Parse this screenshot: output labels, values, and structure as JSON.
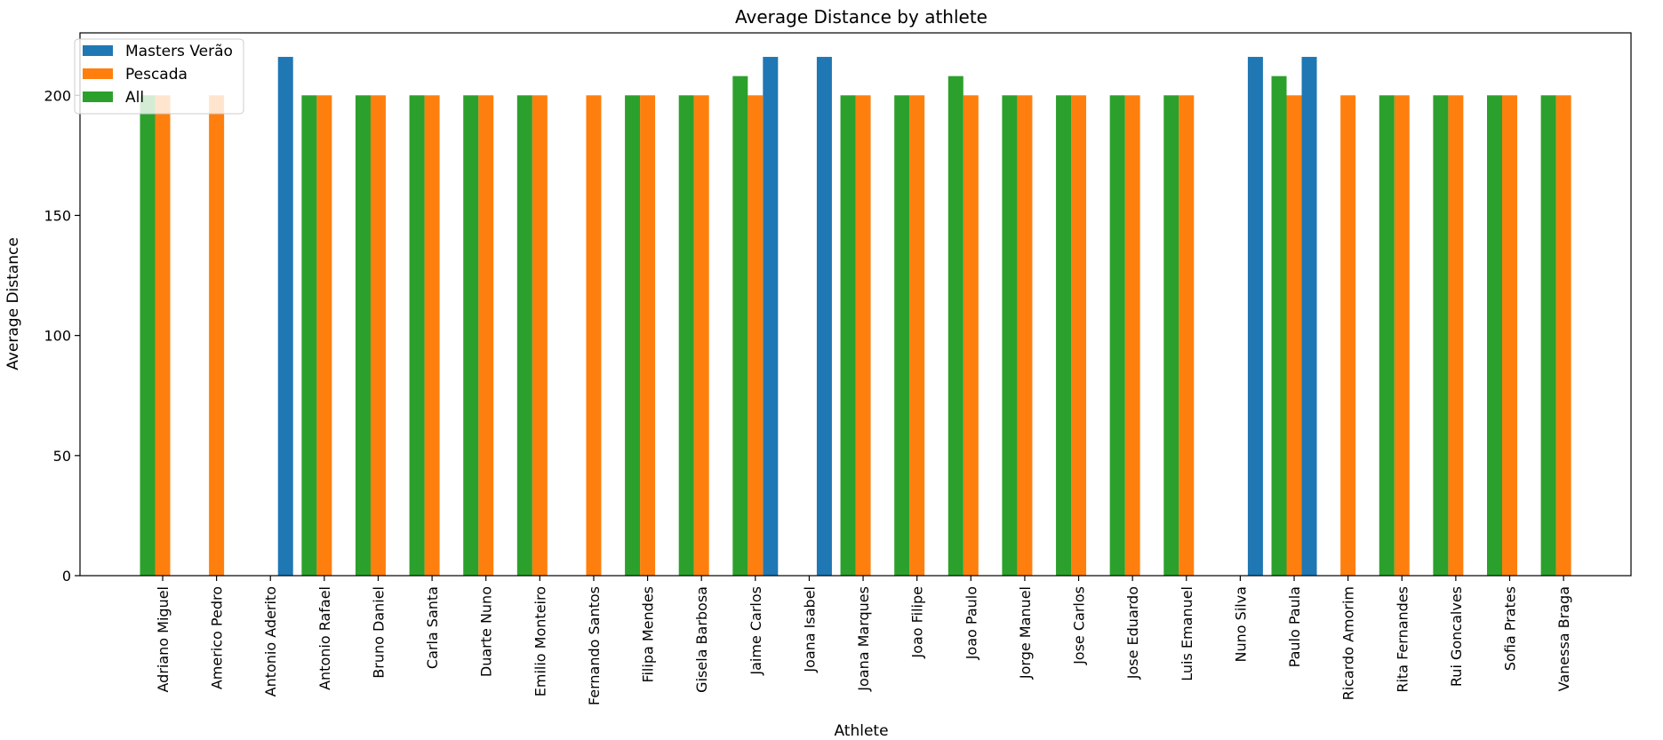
{
  "chart_data": {
    "type": "bar",
    "title": "Average Distance by athlete",
    "xlabel": "Athlete",
    "ylabel": "Average Distance",
    "ylim": [
      0,
      226
    ],
    "yticks": [
      0,
      50,
      100,
      150,
      200
    ],
    "grid": false,
    "legend_position": "top-left",
    "categories": [
      "Adriano Miguel",
      "Americo Pedro",
      "Antonio Aderito",
      "Antonio Rafael",
      "Bruno Daniel",
      "Carla Santa",
      "Duarte Nuno",
      "Emilio Monteiro",
      "Fernando Santos",
      "Filipa Mendes",
      "Gisela Barbosa",
      "Jaime Carlos",
      "Joana Isabel",
      "Joana Marques",
      "Joao Filipe",
      "Joao Paulo",
      "Jorge Manuel",
      "Jose Carlos",
      "Jose Eduardo",
      "Luis Emanuel",
      "Nuno Silva",
      "Paulo Paula",
      "Ricardo Amorim",
      "Rita Fernandes",
      "Rui Goncalves",
      "Sofia Prates",
      "Vanessa Braga"
    ],
    "series": [
      {
        "name": "Masters Verão",
        "color": "#1f77b4",
        "values": [
          null,
          null,
          216,
          null,
          null,
          null,
          null,
          null,
          null,
          null,
          null,
          216,
          216,
          null,
          null,
          null,
          null,
          null,
          null,
          null,
          216,
          216,
          null,
          null,
          null,
          null,
          null
        ]
      },
      {
        "name": "Pescada",
        "color": "#ff7f0e",
        "values": [
          200,
          200,
          null,
          200,
          200,
          200,
          200,
          200,
          200,
          200,
          200,
          200,
          null,
          200,
          200,
          200,
          200,
          200,
          200,
          200,
          null,
          200,
          200,
          200,
          200,
          200,
          200
        ]
      },
      {
        "name": "All",
        "color": "#2ca02c",
        "values": [
          200,
          null,
          null,
          200,
          200,
          200,
          200,
          200,
          null,
          200,
          200,
          208,
          null,
          200,
          200,
          208,
          200,
          200,
          200,
          200,
          null,
          208,
          null,
          200,
          200,
          200,
          200
        ]
      }
    ]
  }
}
